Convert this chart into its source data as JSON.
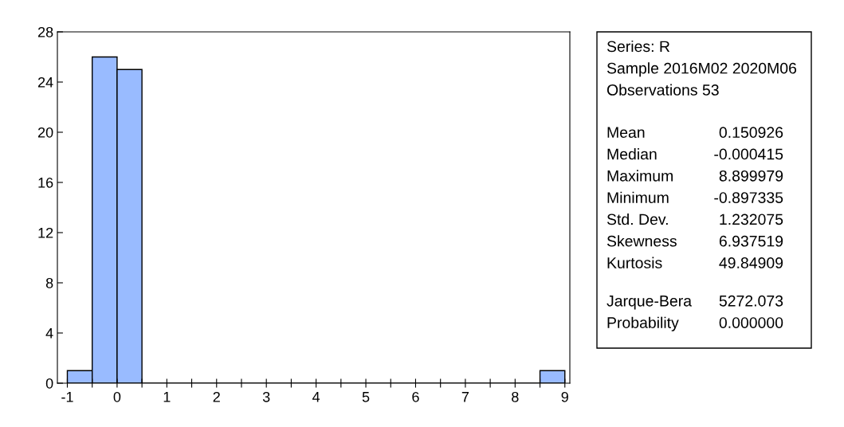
{
  "chart_data": {
    "type": "histogram",
    "bins": [
      -1,
      -0.5,
      0,
      0.5,
      1,
      1.5,
      2,
      2.5,
      3,
      3.5,
      4,
      4.5,
      5,
      5.5,
      6,
      6.5,
      7,
      7.5,
      8,
      8.5,
      9
    ],
    "values": [
      1,
      26,
      25,
      0,
      0,
      0,
      0,
      0,
      0,
      0,
      0,
      0,
      0,
      0,
      0,
      0,
      0,
      0,
      0,
      1
    ],
    "color": "#99bbff",
    "xlim": [
      -1.2,
      9.1
    ],
    "ylim": [
      0,
      28
    ],
    "xticks": [
      -1,
      {
        "value": -0.5,
        "label": null
      },
      0,
      {
        "value": 0.5,
        "label": null
      },
      1,
      {
        "value": 1.5,
        "label": null
      },
      2,
      {
        "value": 2.5,
        "label": null
      },
      3,
      {
        "value": 3.5,
        "label": null
      },
      4,
      {
        "value": 4.5,
        "label": null
      },
      5,
      {
        "value": 5.5,
        "label": null
      },
      6,
      {
        "value": 6.5,
        "label": null
      },
      7,
      {
        "value": 7.5,
        "label": null
      },
      8,
      {
        "value": 8.5,
        "label": null
      },
      9
    ],
    "yticks": [
      0,
      4,
      8,
      12,
      16,
      20,
      24,
      28
    ],
    "grid": false,
    "annotations": [
      "Series: R",
      "Sample 2016M02 2020M06",
      "Observations 53",
      "Mean",
      "0.150926",
      "Median",
      "-0.000415",
      "Maximum",
      "8.899979",
      "Minimum",
      "-0.897335",
      "Std. Dev.",
      "1.232075",
      "Skewness",
      "6.937519",
      "Kurtosis",
      "49.84909",
      "Jarque-Bera",
      "5272.073",
      "Probability",
      "0.000000"
    ]
  }
}
